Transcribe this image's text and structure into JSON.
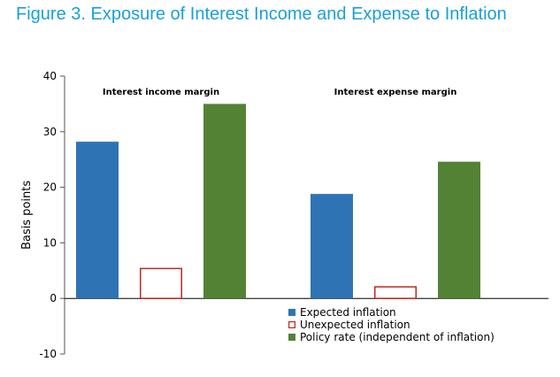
{
  "figure_title": "Figure 3. Exposure of Interest Income and Expense to Inflation",
  "chart_data": {
    "type": "bar",
    "title": "",
    "xlabel": "",
    "ylabel": "Basis points",
    "ylim": [
      -10,
      40
    ],
    "yticks": [
      -10,
      0,
      10,
      20,
      30,
      40
    ],
    "grid": false,
    "legend_position": "bottom-right",
    "categories": [
      "Interest income margin",
      "Interest expense margin"
    ],
    "series": [
      {
        "name": "Expected inflation",
        "values": [
          28.2,
          18.8
        ],
        "color": "#2e74b5",
        "style": "filled"
      },
      {
        "name": "Unexpected inflation",
        "values": [
          5.5,
          2.2
        ],
        "color": "#c0291d",
        "style": "outline"
      },
      {
        "name": "Policy rate (independent of inflation)",
        "values": [
          35.0,
          24.6
        ],
        "color": "#548235",
        "style": "filled"
      }
    ]
  }
}
